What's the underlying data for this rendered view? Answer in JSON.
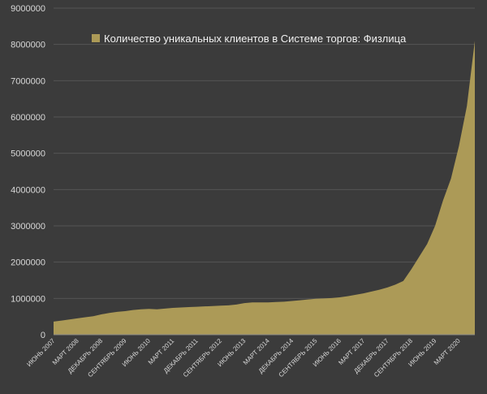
{
  "chart_data": {
    "type": "area",
    "title": "",
    "xlabel": "",
    "ylabel": "",
    "ylim": [
      0,
      9000000
    ],
    "yticks": [
      0,
      1000000,
      2000000,
      3000000,
      4000000,
      5000000,
      6000000,
      7000000,
      8000000,
      9000000
    ],
    "ytick_labels": [
      "0",
      "1000000",
      "2000000",
      "3000000",
      "4000000",
      "5000000",
      "6000000",
      "7000000",
      "8000000",
      "9000000"
    ],
    "xticks": [
      "ИЮНЬ 2007",
      "МАРТ 2008",
      "ДЕКАБРЬ 2008",
      "СЕНТЯБРЬ 2009",
      "ИЮНЬ 2010",
      "МАРТ 2011",
      "ДЕКАБРЬ 2011",
      "СЕНТЯБРЬ 2012",
      "ИЮНЬ 2013",
      "МАРТ 2014",
      "ДЕКАБРЬ 2014",
      "СЕНТЯБРЬ 2015",
      "ИЮНЬ 2016",
      "МАРТ 2017",
      "ДЕКАБРЬ 2017",
      "СЕНТЯБРЬ 2018",
      "ИЮНЬ 2019",
      "МАРТ 2020"
    ],
    "grid": true,
    "legend_position": "top",
    "series": [
      {
        "name": "Количество уникальных клиентов в Системе торгов: Физлица",
        "color": "#ac9a57",
        "x": [
          "2007-06",
          "2007-09",
          "2007-12",
          "2008-03",
          "2008-06",
          "2008-09",
          "2008-12",
          "2009-03",
          "2009-06",
          "2009-09",
          "2009-12",
          "2010-03",
          "2010-06",
          "2010-09",
          "2010-12",
          "2011-03",
          "2011-06",
          "2011-09",
          "2011-12",
          "2012-03",
          "2012-06",
          "2012-09",
          "2012-12",
          "2013-03",
          "2013-06",
          "2013-09",
          "2013-12",
          "2014-03",
          "2014-06",
          "2014-09",
          "2014-12",
          "2015-03",
          "2015-06",
          "2015-09",
          "2015-12",
          "2016-03",
          "2016-06",
          "2016-09",
          "2016-12",
          "2017-03",
          "2017-06",
          "2017-09",
          "2017-12",
          "2018-03",
          "2018-06",
          "2018-09",
          "2018-12",
          "2019-03",
          "2019-06",
          "2019-09",
          "2019-12",
          "2020-03",
          "2020-06",
          "2020-09"
        ],
        "values": [
          360000,
          390000,
          420000,
          450000,
          480000,
          510000,
          560000,
          600000,
          630000,
          650000,
          680000,
          700000,
          710000,
          700000,
          720000,
          740000,
          750000,
          760000,
          770000,
          780000,
          790000,
          800000,
          810000,
          830000,
          870000,
          890000,
          890000,
          890000,
          900000,
          910000,
          930000,
          950000,
          970000,
          990000,
          1000000,
          1010000,
          1030000,
          1060000,
          1100000,
          1140000,
          1190000,
          1240000,
          1300000,
          1380000,
          1480000,
          1800000,
          2150000,
          2500000,
          3000000,
          3700000,
          4300000,
          5200000,
          6300000,
          8100000
        ]
      }
    ]
  }
}
